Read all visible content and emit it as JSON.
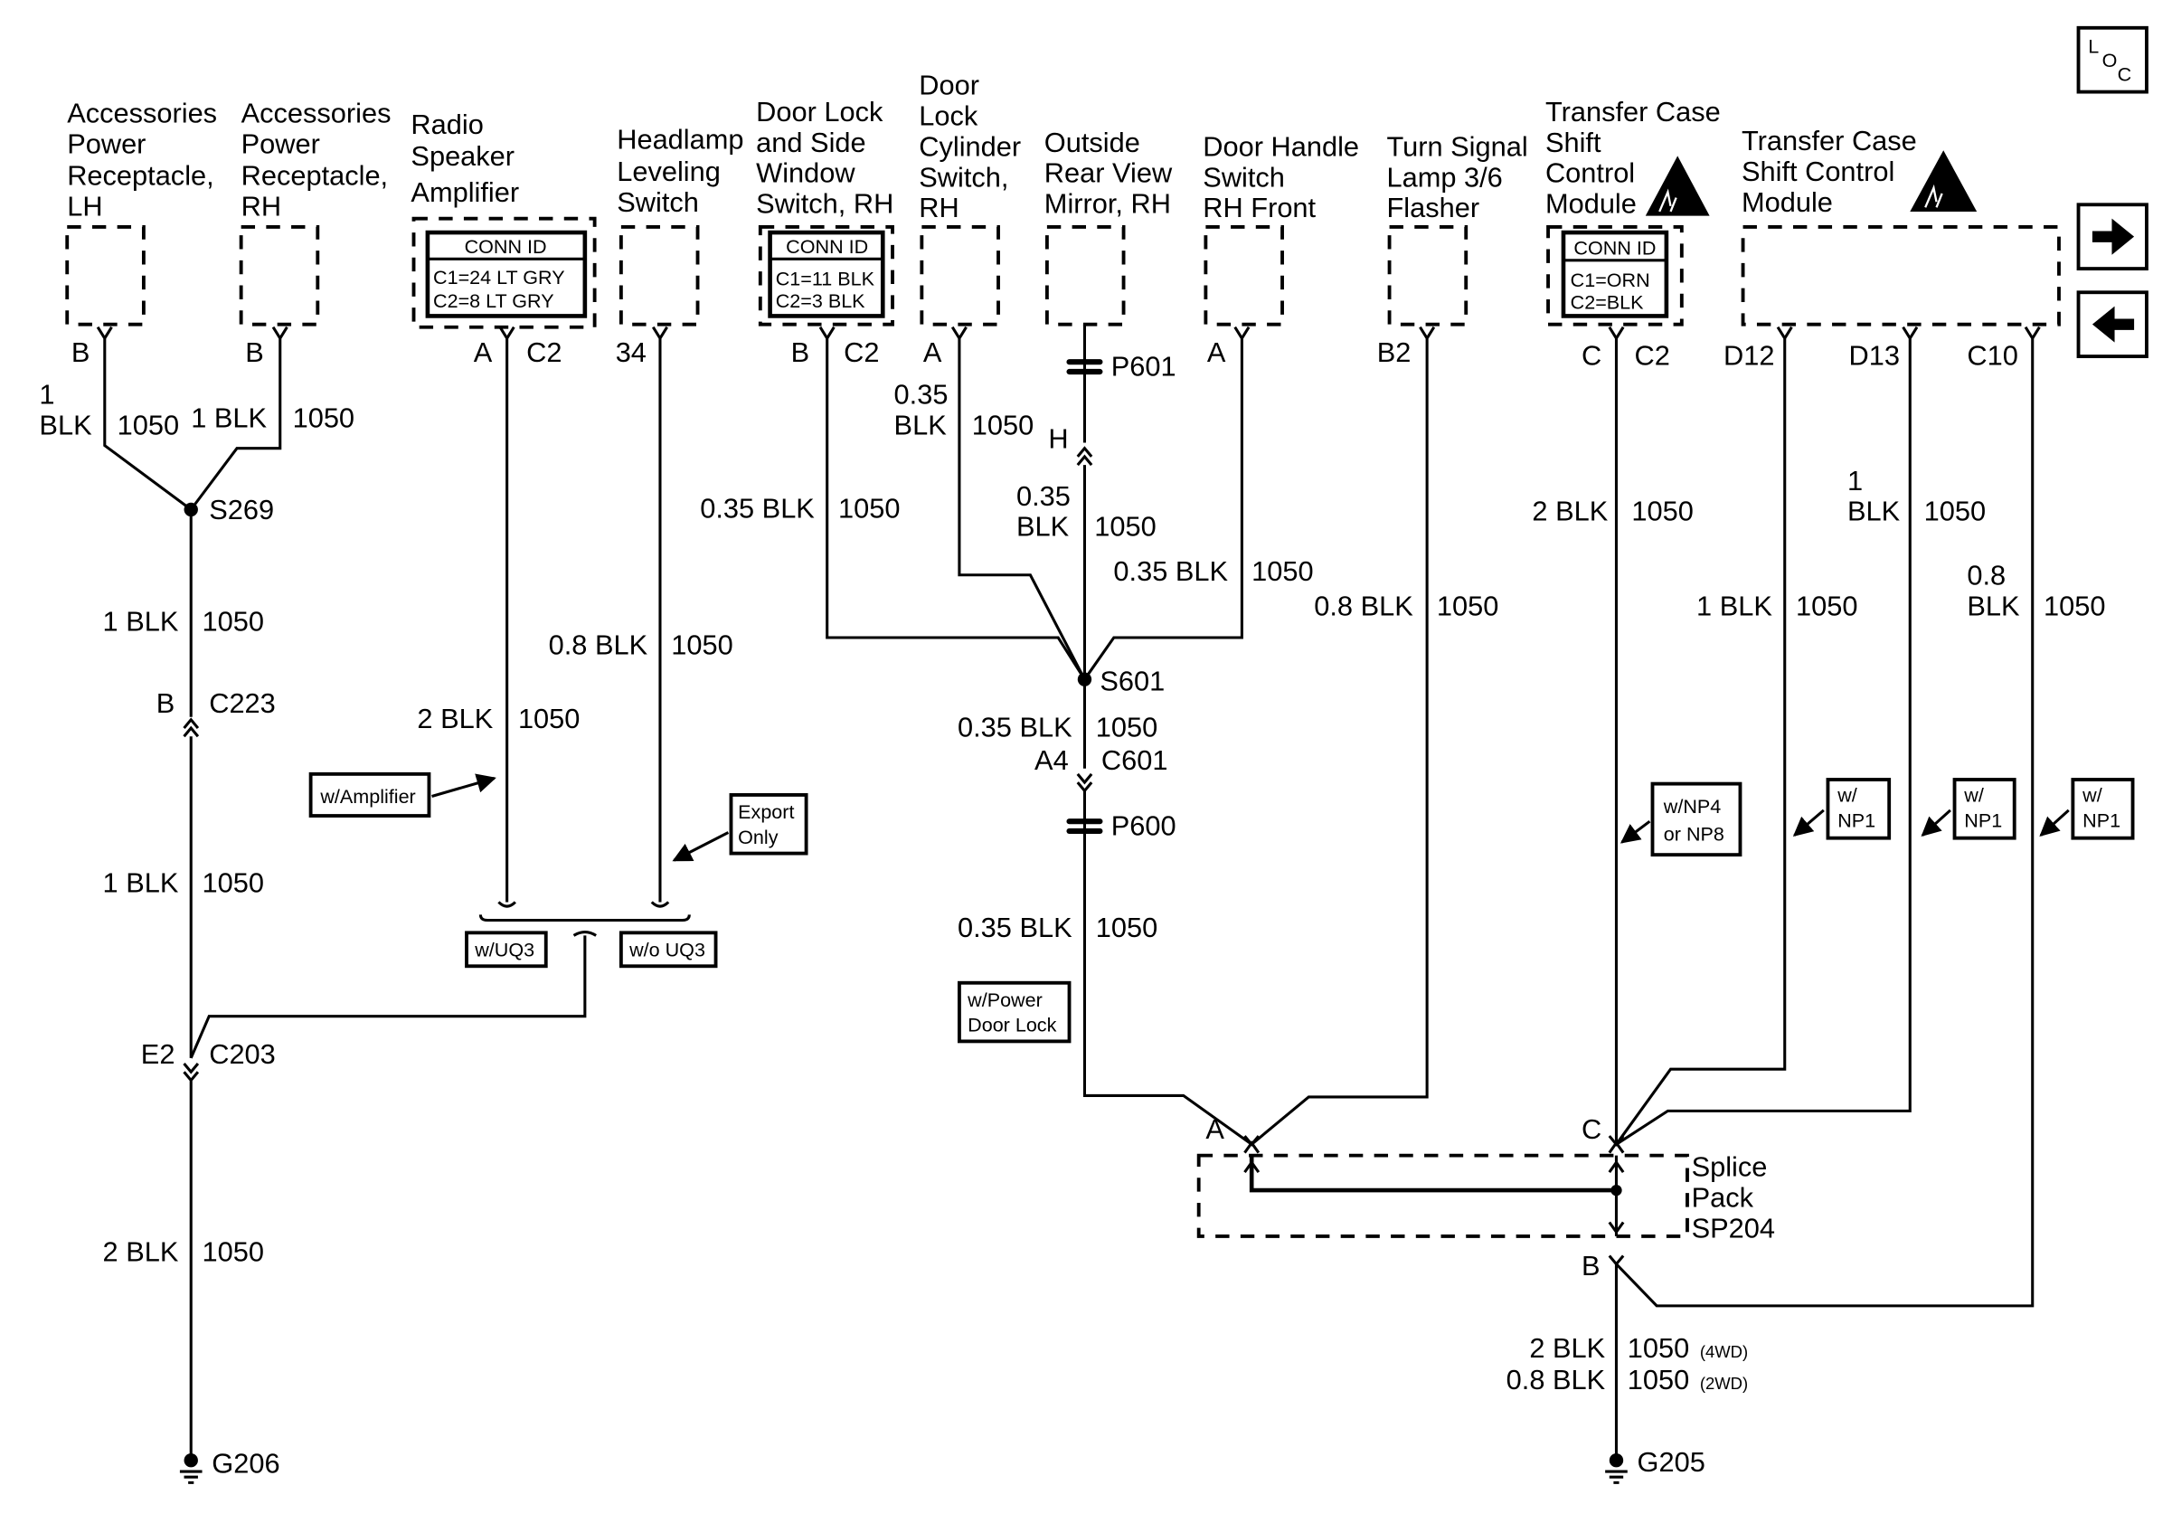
{
  "colors": {
    "ink": "#000000",
    "background": "#ffffff"
  },
  "nav": {
    "location_letters": [
      "L",
      "O",
      "C"
    ],
    "location_icon": "loc-icon",
    "next_icon": "arrow-right-icon",
    "prev_icon": "arrow-left-icon"
  },
  "components": {
    "acc_lh": {
      "title": [
        "Accessories",
        "Power",
        "Receptacle,",
        "LH"
      ],
      "pin": "B"
    },
    "acc_rh": {
      "title": [
        "Accessories",
        "Power",
        "Receptacle,",
        "RH"
      ],
      "pin": "B"
    },
    "radio_amp": {
      "title": [
        "Radio",
        "Speaker",
        "Amplifier"
      ],
      "conn_id": "CONN ID",
      "conn_lines": [
        "C1=24 LT GRY",
        "C2=8 LT GRY"
      ],
      "pin": "A",
      "connector": "C2"
    },
    "headlamp": {
      "title": [
        "Headlamp",
        "Leveling",
        "Switch"
      ],
      "pin": "34"
    },
    "door_lock_window": {
      "title": [
        "Door Lock",
        "and Side",
        "Window",
        "Switch, RH"
      ],
      "conn_id": "CONN ID",
      "conn_lines": [
        "C1=11 BLK",
        "C2=3 BLK"
      ],
      "pin": "B",
      "connector": "C2"
    },
    "door_lock_cyl": {
      "title": [
        "Door",
        "Lock",
        "Cylinder",
        "Switch,",
        "RH"
      ],
      "pin": "A"
    },
    "mirror": {
      "title": [
        "Outside",
        "Rear View",
        "Mirror, RH"
      ]
    },
    "door_handle": {
      "title": [
        "Door Handle",
        "Switch",
        "RH Front"
      ],
      "pin": "A"
    },
    "turn_signal": {
      "title": [
        "Turn Signal",
        "Lamp 3/6",
        "Flasher"
      ],
      "pin": "B2"
    },
    "tcscm_a": {
      "title": [
        "Transfer Case",
        "Shift",
        "Control",
        "Module"
      ],
      "conn_id": "CONN ID",
      "conn_lines": [
        "C1=ORN",
        "C2=BLK"
      ],
      "pin": "C",
      "connector": "C2",
      "icon": "esd-warning-icon"
    },
    "tcscm_b": {
      "title": [
        "Transfer Case",
        "Shift Control",
        "Module"
      ],
      "pins": [
        "D12",
        "D13",
        "C10"
      ],
      "icon": "esd-warning-icon"
    }
  },
  "wires": {
    "acc_lh": {
      "gauge": [
        "1",
        "BLK"
      ],
      "circuit": "1050"
    },
    "acc_rh": {
      "gauge": "1 BLK",
      "circuit": "1050"
    },
    "s269_c223": {
      "gauge": "1 BLK",
      "circuit": "1050"
    },
    "c223_c203": {
      "gauge": "1 BLK",
      "circuit": "1050"
    },
    "c203_g206": {
      "gauge": "2 BLK",
      "circuit": "1050"
    },
    "radio_amp": {
      "gauge": "2 BLK",
      "circuit": "1050"
    },
    "headlamp": {
      "gauge": "0.8 BLK",
      "circuit": "1050"
    },
    "door_lock_window": {
      "gauge": "0.35 BLK",
      "circuit": "1050"
    },
    "door_lock_cyl": {
      "gauge": [
        "0.35",
        "BLK"
      ],
      "circuit": "1050"
    },
    "mirror": {
      "gauge": [
        "0.35",
        "BLK"
      ],
      "circuit": "1050"
    },
    "door_handle": {
      "gauge": "0.35 BLK",
      "circuit": "1050"
    },
    "s601_c601": {
      "gauge": "0.35 BLK",
      "circuit": "1050"
    },
    "p600_sp204": {
      "gauge": "0.35 BLK",
      "circuit": "1050"
    },
    "turn_signal": {
      "gauge": "0.8 BLK",
      "circuit": "1050"
    },
    "tcscm_c": {
      "gauge": "2 BLK",
      "circuit": "1050"
    },
    "d12": {
      "gauge": "1 BLK",
      "circuit": "1050"
    },
    "d13": {
      "gauge": [
        "1",
        "BLK"
      ],
      "circuit": "1050"
    },
    "c10": {
      "gauge": [
        "0.8",
        "BLK"
      ],
      "circuit": "1050"
    },
    "sp204_g205": [
      {
        "gauge": "2 BLK",
        "circuit": "1050",
        "variant": "(4WD)"
      },
      {
        "gauge": "0.8 BLK",
        "circuit": "1050",
        "variant": "(2WD)"
      }
    ]
  },
  "junctions": {
    "s269": "S269",
    "c223": {
      "pin": "B",
      "name": "C223"
    },
    "c203": {
      "pin": "E2",
      "name": "C203"
    },
    "g206": "G206",
    "p601": "P601",
    "h_pin": "H",
    "s601": "S601",
    "c601": {
      "pin": "A4",
      "name": "C601"
    },
    "p600": "P600",
    "sp204": {
      "label": [
        "Splice",
        "Pack",
        "SP204"
      ],
      "pins": [
        "A",
        "C",
        "B"
      ]
    },
    "g205": "G205"
  },
  "options": {
    "amplifier": "w/Amplifier",
    "export": [
      "Export",
      "Only"
    ],
    "uq3": "w/UQ3",
    "no_uq3": "w/o UQ3",
    "power_door_lock": [
      "w/Power",
      "Door Lock"
    ],
    "np4_np8": [
      "w/NP4",
      "or NP8"
    ],
    "np1_a": [
      "w/",
      "NP1"
    ],
    "np1_b": [
      "w/",
      "NP1"
    ],
    "np1_c": [
      "w/",
      "NP1"
    ]
  }
}
